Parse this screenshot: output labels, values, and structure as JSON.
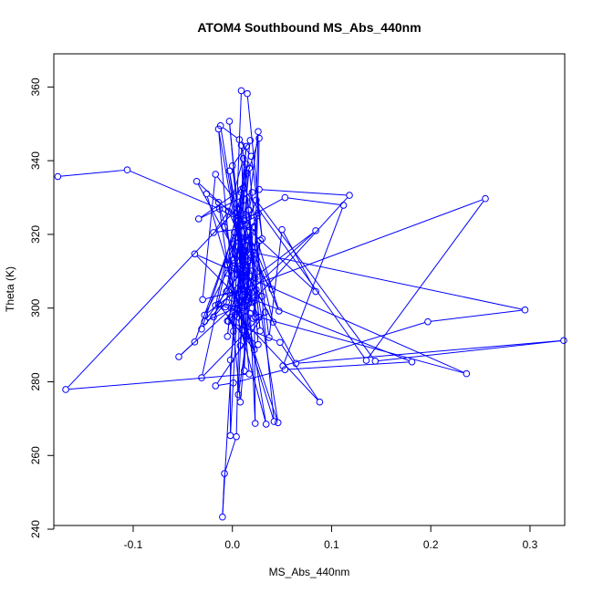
{
  "chart_data": {
    "type": "line",
    "title": "ATOM4 Southbound MS_Abs_440nm",
    "xlabel": "MS_Abs_440nm",
    "ylabel": "Theta (K)",
    "xlim": [
      -0.18,
      0.335
    ],
    "ylim": [
      241,
      369
    ],
    "xticks": [
      -0.1,
      0.0,
      0.1,
      0.2,
      0.3
    ],
    "xtick_labels": [
      "-0.1",
      "0.0",
      "0.1",
      "0.2",
      "0.3"
    ],
    "yticks": [
      240,
      260,
      280,
      300,
      320,
      340,
      360
    ],
    "ytick_labels": [
      "240",
      "260",
      "280",
      "300",
      "320",
      "340",
      "360"
    ],
    "grid": false,
    "legend": "none",
    "series": [
      {
        "color": "#0000ff",
        "marker": "open-circle",
        "points": [
          [
            -0.176,
            335.7
          ],
          [
            -0.106,
            337.5
          ],
          [
            -0.013,
            326.9
          ],
          [
            0.004,
            324.2
          ],
          [
            0.009,
            359.0
          ],
          [
            0.015,
            358.2
          ],
          [
            0.03,
            318.8
          ],
          [
            0.019,
            341.2
          ],
          [
            0.007,
            345.7
          ],
          [
            -0.012,
            349.5
          ],
          [
            0.006,
            319.1
          ],
          [
            0.011,
            332.6
          ],
          [
            0.135,
            285.8
          ],
          [
            0.255,
            329.7
          ],
          [
            0.009,
            305.0
          ],
          [
            -0.03,
            302.3
          ],
          [
            -0.017,
            336.3
          ],
          [
            0.016,
            324.6
          ],
          [
            0.053,
            330.0
          ],
          [
            0.112,
            327.9
          ],
          [
            0.051,
            284.3
          ],
          [
            0.197,
            296.3
          ],
          [
            0.295,
            299.5
          ],
          [
            0.014,
            315.5
          ],
          [
            -0.004,
            326.3
          ],
          [
            -0.019,
            320.5
          ],
          [
            0.022,
            322.1
          ],
          [
            0.037,
            292.0
          ],
          [
            0.05,
            321.3
          ],
          [
            0.084,
            304.5
          ],
          [
            -0.036,
            334.4
          ],
          [
            0.064,
            285.0
          ],
          [
            0.334,
            291.2
          ],
          [
            0.144,
            285.6
          ],
          [
            0.024,
            329.3
          ],
          [
            0.002,
            312.2
          ],
          [
            0.027,
            297.5
          ],
          [
            0.236,
            282.2
          ],
          [
            -0.038,
            314.7
          ],
          [
            0.004,
            303.4
          ],
          [
            0.022,
            288.7
          ],
          [
            -0.014,
            301.0
          ],
          [
            0.023,
            297.6
          ],
          [
            0.027,
            346.1
          ],
          [
            0.009,
            331.4
          ],
          [
            -0.017,
            300.7
          ],
          [
            -0.007,
            300.3
          ],
          [
            0.001,
            313.1
          ],
          [
            -0.028,
            298.1
          ],
          [
            0.084,
            321.0
          ],
          [
            -0.054,
            286.8
          ],
          [
            -0.038,
            290.8
          ],
          [
            0.002,
            320.5
          ],
          [
            -0.006,
            311.7
          ],
          [
            -0.031,
            281.1
          ],
          [
            0.033,
            298.9
          ],
          [
            -0.017,
            278.9
          ],
          [
            0.001,
            279.7
          ],
          [
            0.053,
            283.3
          ],
          [
            0.181,
            285.4
          ],
          [
            0.01,
            303.5
          ],
          [
            0.001,
            317.4
          ],
          [
            0.023,
            308.1
          ],
          [
            0.017,
            326.6
          ],
          [
            0.02,
            331.4
          ],
          [
            -0.034,
            324.2
          ],
          [
            0.009,
            332.2
          ],
          [
            -0.01,
            243.3
          ],
          [
            -0.008,
            255.1
          ],
          [
            0.004,
            265.1
          ],
          [
            0.009,
            319.2
          ],
          [
            0.01,
            308.3
          ],
          [
            0.016,
            318.3
          ],
          [
            0.012,
            283.0
          ],
          [
            0.012,
            323.7
          ],
          [
            -0.026,
            331.0
          ],
          [
            0.009,
            298.6
          ],
          [
            -0.005,
            309.5
          ],
          [
            0.046,
            268.9
          ],
          [
            0.016,
            320.6
          ],
          [
            0.04,
            305.1
          ],
          [
            0.013,
            315.2
          ],
          [
            0.007,
            310.4
          ],
          [
            0.001,
            293.7
          ],
          [
            -0.002,
            297.5
          ],
          [
            0.003,
            298.2
          ],
          [
            -0.014,
            348.6
          ],
          [
            0.012,
            308.4
          ],
          [
            -0.005,
            311.8
          ],
          [
            0.006,
            321.7
          ],
          [
            0.014,
            343.9
          ],
          [
            0.004,
            319.3
          ],
          [
            0.0,
            302.7
          ],
          [
            -0.014,
            328.7
          ],
          [
            0.009,
            306.6
          ],
          [
            -0.001,
            300.0
          ],
          [
            0.008,
            274.5
          ],
          [
            0.02,
            310.1
          ],
          [
            0.005,
            309.1
          ],
          [
            0.016,
            304.2
          ],
          [
            0.028,
            318.4
          ],
          [
            0.021,
            297.2
          ],
          [
            0.02,
            300.0
          ],
          [
            0.005,
            316.7
          ],
          [
            -0.005,
            292.3
          ],
          [
            0.018,
            345.5
          ],
          [
            0.0,
            338.6
          ],
          [
            0.005,
            327.1
          ],
          [
            0.013,
            310.1
          ],
          [
            0.009,
            344.2
          ],
          [
            0.015,
            336.6
          ],
          [
            0.013,
            311.6
          ],
          [
            0.016,
            318.6
          ],
          [
            -0.002,
            285.9
          ],
          [
            -0.002,
            265.4
          ],
          [
            0.005,
            301.3
          ],
          [
            0.042,
            269.2
          ],
          [
            0.017,
            338.0
          ],
          [
            0.012,
            324.3
          ],
          [
            0.026,
            325.8
          ],
          [
            -0.019,
            297.6
          ],
          [
            -0.006,
            301.6
          ],
          [
            0.088,
            274.5
          ],
          [
            0.048,
            290.7
          ],
          [
            -0.005,
            296.5
          ],
          [
            0.013,
            311.7
          ],
          [
            0.005,
            322.2
          ],
          [
            0.025,
            325.0
          ],
          [
            0.019,
            301.6
          ],
          [
            0.009,
            318.8
          ],
          [
            0.005,
            297.6
          ],
          [
            0.034,
            268.5
          ],
          [
            0.012,
            304.5
          ],
          [
            -0.003,
            350.7
          ],
          [
            0.014,
            302.0
          ],
          [
            -0.003,
            337.2
          ],
          [
            0.011,
            315.8
          ],
          [
            0.014,
            322.4
          ],
          [
            0.019,
            313.7
          ],
          [
            -0.028,
            296.4
          ],
          [
            0.03,
            303.2
          ],
          [
            0.007,
            311.4
          ],
          [
            0.014,
            339.0
          ],
          [
            -0.006,
            304.5
          ],
          [
            0.008,
            309.4
          ],
          [
            0.004,
            302.7
          ],
          [
            0.022,
            302.0
          ],
          [
            0.023,
            268.7
          ],
          [
            0.018,
            298.5
          ],
          [
            0.006,
            276.5
          ],
          [
            0.011,
            308.3
          ],
          [
            -0.031,
            294.3
          ],
          [
            0.013,
            329.4
          ],
          [
            -0.168,
            277.9
          ],
          [
            0.017,
            282.1
          ],
          [
            0.004,
            323.4
          ],
          [
            0.012,
            315.5
          ],
          [
            0.008,
            289.8
          ],
          [
            0.02,
            316.6
          ],
          [
            0.028,
            293.8
          ],
          [
            0.011,
            340.6
          ],
          [
            -0.008,
            322.0
          ],
          [
            0.016,
            303.1
          ],
          [
            0.014,
            292.2
          ],
          [
            0.005,
            300.0
          ],
          [
            0.017,
            304.2
          ],
          [
            -0.004,
            296.4
          ],
          [
            0.026,
            290.1
          ],
          [
            0.016,
            326.6
          ],
          [
            0.026,
            347.9
          ],
          [
            0.023,
            316.5
          ],
          [
            0.041,
            296.2
          ],
          [
            0.013,
            310.2
          ],
          [
            0.0,
            313.0
          ],
          [
            0.006,
            323.9
          ],
          [
            0.008,
            308.6
          ],
          [
            0.01,
            294.0
          ],
          [
            0.017,
            313.0
          ],
          [
            0.015,
            302.1
          ],
          [
            0.021,
            321.9
          ],
          [
            0.047,
            299.2
          ],
          [
            0.009,
            322.7
          ],
          [
            0.011,
            310.3
          ],
          [
            0.024,
            305.0
          ],
          [
            0.011,
            299.0
          ],
          [
            0.118,
            330.6
          ],
          [
            0.027,
            332.2
          ]
        ]
      }
    ]
  }
}
